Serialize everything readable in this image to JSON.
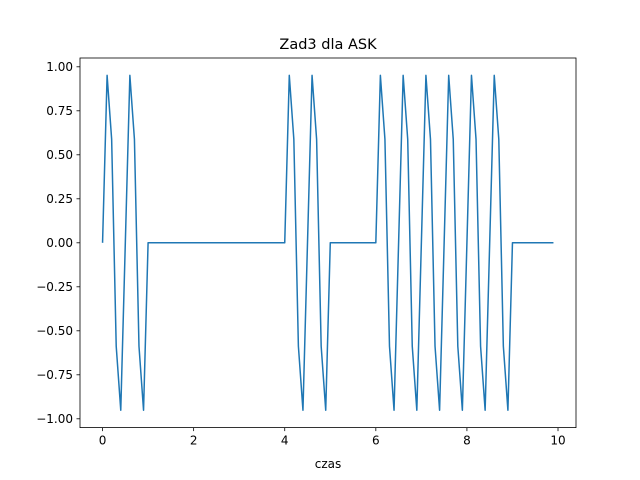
{
  "chart_data": {
    "type": "line",
    "title": "Zad3 dla ASK",
    "xlabel": "czas",
    "ylabel": "",
    "xlim": [
      -0.495,
      10.395
    ],
    "ylim": [
      -1.05,
      1.05
    ],
    "x_ticks": [
      0,
      2,
      4,
      6,
      8,
      10
    ],
    "x_tick_labels": [
      "0",
      "2",
      "4",
      "6",
      "8",
      "10"
    ],
    "y_ticks": [
      1.0,
      0.75,
      0.5,
      0.25,
      0.0,
      -0.25,
      -0.5,
      -0.75,
      -1.0
    ],
    "y_tick_labels": [
      "1.00",
      "0.75",
      "0.50",
      "0.25",
      "0.00",
      "−0.25",
      "−0.50",
      "−0.75",
      "−1.00"
    ],
    "grid": false,
    "legend": "none",
    "series": [
      {
        "color": "#1f77b4",
        "sample_step": 0.1,
        "x_start": 0.0,
        "values": [
          0.0,
          0.9511,
          0.5878,
          -0.5878,
          -0.9511,
          0.0,
          0.9511,
          0.5878,
          -0.5878,
          -0.9511,
          0.0,
          0.0,
          0.0,
          0.0,
          0.0,
          0.0,
          0.0,
          0.0,
          0.0,
          0.0,
          0.0,
          0.0,
          0.0,
          0.0,
          0.0,
          0.0,
          0.0,
          0.0,
          0.0,
          0.0,
          0.0,
          0.0,
          0.0,
          0.0,
          0.0,
          0.0,
          0.0,
          0.0,
          0.0,
          0.0,
          0.0,
          0.9511,
          0.5878,
          -0.5878,
          -0.9511,
          0.0,
          0.9511,
          0.5878,
          -0.5878,
          -0.9511,
          0.0,
          0.0,
          0.0,
          0.0,
          0.0,
          0.0,
          0.0,
          0.0,
          0.0,
          0.0,
          0.0,
          0.9511,
          0.5878,
          -0.5878,
          -0.9511,
          0.0,
          0.9511,
          0.5878,
          -0.5878,
          -0.9511,
          0.0,
          0.9511,
          0.5878,
          -0.5878,
          -0.9511,
          0.0,
          0.9511,
          0.5878,
          -0.5878,
          -0.9511,
          0.0,
          0.9511,
          0.5878,
          -0.5878,
          -0.9511,
          0.0,
          0.9511,
          0.5878,
          -0.5878,
          -0.9511,
          0.0,
          0.0,
          0.0,
          0.0,
          0.0,
          0.0,
          0.0,
          0.0,
          0.0,
          0.0
        ]
      }
    ]
  }
}
